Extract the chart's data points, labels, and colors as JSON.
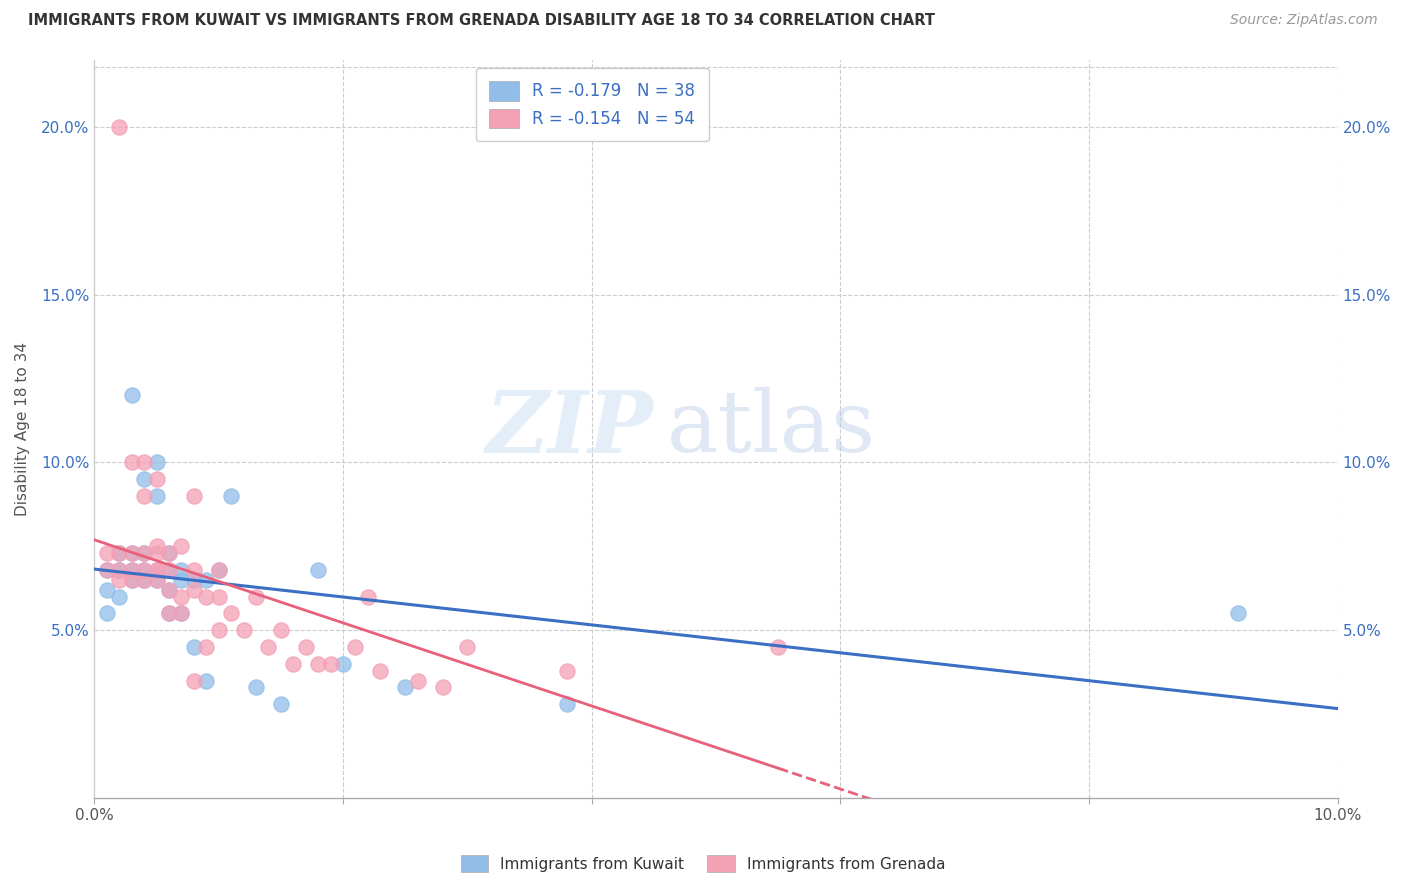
{
  "title": "IMMIGRANTS FROM KUWAIT VS IMMIGRANTS FROM GRENADA DISABILITY AGE 18 TO 34 CORRELATION CHART",
  "source": "Source: ZipAtlas.com",
  "ylabel": "Disability Age 18 to 34",
  "xlim": [
    0.0,
    0.1
  ],
  "ylim": [
    0.0,
    0.22
  ],
  "xticks": [
    0.0,
    0.02,
    0.04,
    0.06,
    0.08,
    0.1
  ],
  "yticks": [
    0.0,
    0.05,
    0.1,
    0.15,
    0.2
  ],
  "xtick_labels_show": [
    "0.0%",
    "10.0%"
  ],
  "ytick_labels_show": [
    "5.0%",
    "10.0%",
    "15.0%",
    "20.0%"
  ],
  "kuwait_color": "#91bde8",
  "grenada_color": "#f4a0b5",
  "line_kuwait_color": "#3a6fc4",
  "line_grenada_color": "#e8607a",
  "kuwait_R": -0.179,
  "kuwait_N": 38,
  "grenada_R": -0.154,
  "grenada_N": 54,
  "watermark_zip": "ZIP",
  "watermark_atlas": "atlas",
  "legend_kuwait_label": "Immigrants from Kuwait",
  "legend_grenada_label": "Immigrants from Grenada",
  "kuwait_x": [
    0.001,
    0.001,
    0.001,
    0.002,
    0.002,
    0.002,
    0.003,
    0.003,
    0.003,
    0.003,
    0.004,
    0.004,
    0.004,
    0.004,
    0.005,
    0.005,
    0.005,
    0.005,
    0.006,
    0.006,
    0.006,
    0.006,
    0.007,
    0.007,
    0.007,
    0.008,
    0.008,
    0.009,
    0.009,
    0.01,
    0.011,
    0.013,
    0.015,
    0.018,
    0.02,
    0.025,
    0.038,
    0.092
  ],
  "kuwait_y": [
    0.055,
    0.062,
    0.068,
    0.06,
    0.068,
    0.073,
    0.065,
    0.068,
    0.073,
    0.12,
    0.065,
    0.068,
    0.073,
    0.095,
    0.065,
    0.068,
    0.09,
    0.1,
    0.055,
    0.062,
    0.068,
    0.073,
    0.055,
    0.065,
    0.068,
    0.045,
    0.065,
    0.035,
    0.065,
    0.068,
    0.09,
    0.033,
    0.028,
    0.068,
    0.04,
    0.033,
    0.028,
    0.055
  ],
  "grenada_x": [
    0.001,
    0.001,
    0.002,
    0.002,
    0.002,
    0.002,
    0.003,
    0.003,
    0.003,
    0.003,
    0.004,
    0.004,
    0.004,
    0.004,
    0.004,
    0.005,
    0.005,
    0.005,
    0.005,
    0.005,
    0.005,
    0.006,
    0.006,
    0.006,
    0.006,
    0.007,
    0.007,
    0.007,
    0.008,
    0.008,
    0.008,
    0.008,
    0.009,
    0.009,
    0.01,
    0.01,
    0.01,
    0.011,
    0.012,
    0.013,
    0.014,
    0.015,
    0.016,
    0.017,
    0.018,
    0.019,
    0.021,
    0.022,
    0.023,
    0.026,
    0.028,
    0.03,
    0.038,
    0.055
  ],
  "grenada_y": [
    0.068,
    0.073,
    0.065,
    0.068,
    0.073,
    0.2,
    0.065,
    0.068,
    0.073,
    0.1,
    0.065,
    0.068,
    0.073,
    0.09,
    0.1,
    0.065,
    0.068,
    0.068,
    0.073,
    0.075,
    0.095,
    0.055,
    0.062,
    0.068,
    0.073,
    0.055,
    0.06,
    0.075,
    0.035,
    0.062,
    0.068,
    0.09,
    0.045,
    0.06,
    0.05,
    0.06,
    0.068,
    0.055,
    0.05,
    0.06,
    0.045,
    0.05,
    0.04,
    0.045,
    0.04,
    0.04,
    0.045,
    0.06,
    0.038,
    0.035,
    0.033,
    0.045,
    0.038,
    0.045
  ]
}
